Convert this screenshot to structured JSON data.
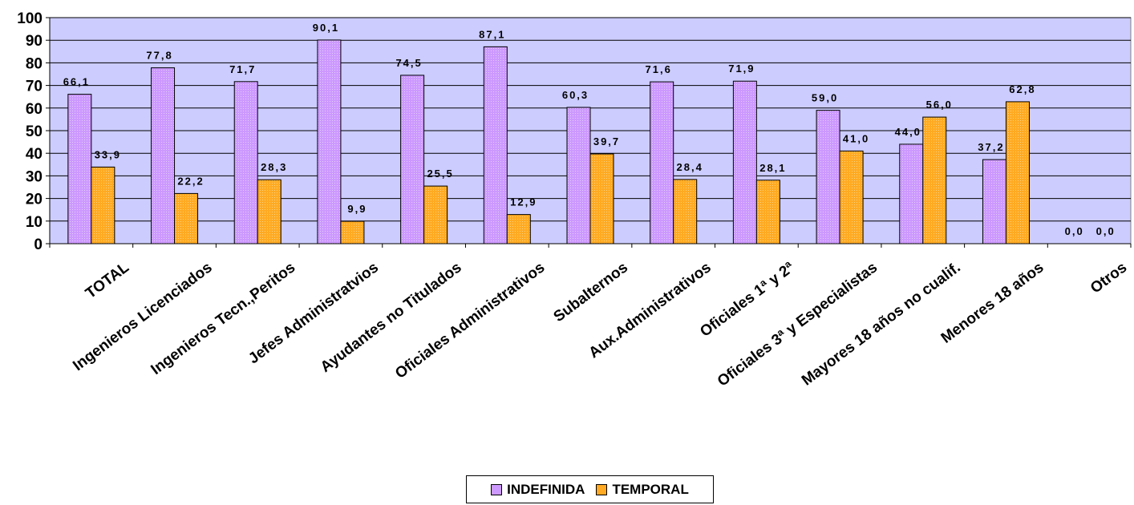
{
  "chart_data": {
    "type": "bar",
    "categories": [
      "TOTAL",
      "Ingenieros Licenciados",
      "Ingenieros Tecn.,Peritos",
      "Jefes Administratvios",
      "Ayudantes no Titulados",
      "Oficiales Administrativos",
      "Subalternos",
      "Aux.Administrativos",
      "Oficiales 1ª y 2ª",
      "Oficiales 3ª y Especialistas",
      "Mayores 18 años no cualif.",
      "Menores 18 años",
      "Otros"
    ],
    "series": [
      {
        "name": "INDEFINIDA",
        "color": "#cc99ff",
        "values": [
          66.1,
          77.8,
          71.7,
          90.1,
          74.5,
          87.1,
          60.3,
          71.6,
          71.9,
          59.0,
          44.0,
          37.2,
          0.0
        ],
        "labels": [
          "66,1",
          "77,8",
          "71,7",
          "90,1",
          "74,5",
          "87,1",
          "60,3",
          "71,6",
          "71,9",
          "59,0",
          "44,0",
          "37,2",
          "0,0"
        ]
      },
      {
        "name": "TEMPORAL",
        "color": "#ffaa22",
        "values": [
          33.9,
          22.2,
          28.3,
          9.9,
          25.5,
          12.9,
          39.7,
          28.4,
          28.1,
          41.0,
          56.0,
          62.8,
          0.0
        ],
        "labels": [
          "33,9",
          "22,2",
          "28,3",
          "9,9",
          "25,5",
          "12,9",
          "39,7",
          "28,4",
          "28,1",
          "41,0",
          "56,0",
          "62,8",
          "0,0"
        ]
      }
    ],
    "ylim": [
      0,
      100
    ],
    "yticks": [
      0,
      10,
      20,
      30,
      40,
      50,
      60,
      70,
      80,
      90,
      100
    ],
    "grid": true,
    "plot_background": "#ccccff",
    "legend_position": "bottom"
  }
}
